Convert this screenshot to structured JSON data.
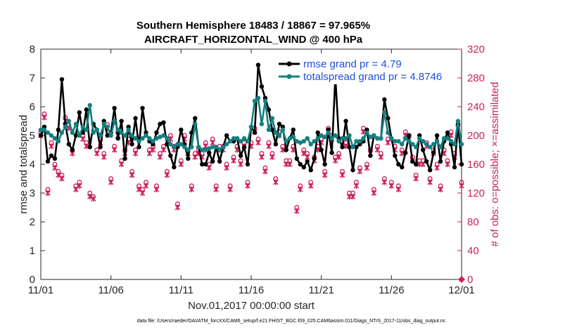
{
  "colors": {
    "rmse": "#000000",
    "spread": "#128080",
    "obs": "#cc1f5a",
    "legend_text": "#1f4fe0",
    "axis": "#262626"
  },
  "chart_data": {
    "type": "line",
    "title_line1": "Southern Hemisphere 18483 / 18867 = 97.965%",
    "title_line2": "AIRCRAFT_HORIZONTAL_WIND @ 400 hPa",
    "xlabel": "Nov.01,2017 00:00:00 start",
    "ylabel_left": "rmse and totalspread",
    "ylabel_right": "# of obs: o=possible; ×=assimilated",
    "footnote": "data file: /Users/raeder/DAI/ATM_forcXX/CAM6_setup/f.e21.FHIST_BGC.f09_025.CAM6assim.011/Diags_NTrS_2017-11/obs_diag_output.nc",
    "x_range_days": [
      0,
      30
    ],
    "ylim_left": [
      0,
      8
    ],
    "ylim_right": [
      0,
      320
    ],
    "x_ticks": [
      {
        "day": 0,
        "label": "11/01"
      },
      {
        "day": 5,
        "label": "11/06"
      },
      {
        "day": 10,
        "label": "11/11"
      },
      {
        "day": 15,
        "label": "11/16"
      },
      {
        "day": 20,
        "label": "11/21"
      },
      {
        "day": 25,
        "label": "11/26"
      },
      {
        "day": 30,
        "label": "12/01"
      }
    ],
    "y_ticks_left": [
      "0",
      "1",
      "2",
      "3",
      "4",
      "5",
      "6",
      "7",
      "8"
    ],
    "y_ticks_right": [
      "0",
      "40",
      "80",
      "120",
      "160",
      "200",
      "240",
      "280",
      "320"
    ],
    "legend": {
      "position": "top-right",
      "entries": [
        "rmse grand pr = 4.79",
        "totalspread grand pr = 4.8746"
      ]
    },
    "samples_per_day": 4,
    "series": [
      {
        "name": "rmse",
        "axis": "left",
        "values": [
          5.0,
          5.3,
          4.1,
          4.3,
          4.2,
          5.2,
          6.95,
          5.4,
          4.7,
          4.5,
          5.0,
          5.8,
          5.1,
          5.9,
          4.6,
          5.4,
          5.2,
          4.6,
          5.5,
          5.0,
          5.1,
          5.95,
          4.9,
          5.5,
          4.2,
          5.3,
          4.7,
          5.6,
          4.6,
          5.95,
          5.1,
          4.8,
          4.7,
          5.1,
          5.4,
          5.45,
          4.7,
          4.3,
          3.9,
          4.6,
          5.2,
          4.7,
          4.2,
          5.1,
          5.6,
          4.6,
          4.0,
          4.0,
          4.4,
          4.1,
          4.6,
          4.1,
          4.6,
          5.0,
          4.8,
          4.8,
          4.9,
          4.3,
          4.6,
          4.0,
          5.3,
          5.1,
          7.45,
          6.7,
          6.3,
          5.9,
          5.2,
          4.7,
          5.4,
          5.3,
          4.5,
          4.9,
          5.2,
          4.2,
          4.0,
          3.9,
          4.1,
          3.8,
          4.2,
          5.1,
          4.5,
          4.0,
          5.2,
          4.4,
          7.05,
          4.9,
          4.6,
          5.5,
          4.6,
          3.8,
          4.6,
          4.7,
          4.8,
          5.2,
          4.3,
          5.0,
          4.9,
          4.9,
          6.25,
          5.6,
          4.9,
          4.3,
          4.0,
          3.9,
          4.4,
          5.0,
          4.1,
          4.0,
          5.0,
          4.5,
          4.1,
          3.8,
          4.4,
          5.0,
          4.1,
          4.8,
          5.1,
          4.7,
          3.9,
          5.4,
          4.0
        ]
      },
      {
        "name": "totalspread",
        "axis": "left",
        "values": [
          5.2,
          5.2,
          5.1,
          5.0,
          4.9,
          4.8,
          5.1,
          5.3,
          5.5,
          5.1,
          5.4,
          5.0,
          5.3,
          5.2,
          6.05,
          5.1,
          5.2,
          5.0,
          5.4,
          5.3,
          5.0,
          5.5,
          5.2,
          5.1,
          5.0,
          5.2,
          5.0,
          4.9,
          4.8,
          4.9,
          5.0,
          4.9,
          4.8,
          4.9,
          4.95,
          5.0,
          4.9,
          4.7,
          4.6,
          4.7,
          4.7,
          4.6,
          4.5,
          4.6,
          5.4,
          4.6,
          4.5,
          4.5,
          4.55,
          4.6,
          4.6,
          4.5,
          4.6,
          4.7,
          4.8,
          4.9,
          4.9,
          4.8,
          4.9,
          4.8,
          5.3,
          6.2,
          6.3,
          5.4,
          6.2,
          5.2,
          5.6,
          5.1,
          5.0,
          5.2,
          4.8,
          4.9,
          4.95,
          4.8,
          4.75,
          4.8,
          4.9,
          4.7,
          4.8,
          4.9,
          5.0,
          4.95,
          5.1,
          4.9,
          5.0,
          4.8,
          4.9,
          4.9,
          5.0,
          4.6,
          4.8,
          4.8,
          4.9,
          5.1,
          4.95,
          5.0,
          4.9,
          4.9,
          5.8,
          5.1,
          4.9,
          4.8,
          4.8,
          4.7,
          4.9,
          4.8,
          4.7,
          4.6,
          4.9,
          4.8,
          4.7,
          4.6,
          4.7,
          4.8,
          4.6,
          4.9,
          4.9,
          4.8,
          4.7,
          5.5,
          4.7
        ]
      },
      {
        "name": "obs possible",
        "axis": "right",
        "values": [
          205,
          230,
          125,
          190,
          160,
          150,
          145,
          225,
          215,
          180,
          130,
          135,
          200,
          190,
          120,
          115,
          180,
          195,
          175,
          215,
          140,
          185,
          205,
          165,
          180,
          195,
          150,
          180,
          130,
          125,
          135,
          180,
          185,
          130,
          175,
          185,
          150,
          200,
          185,
          105,
          165,
          200,
          180,
          130,
          175,
          180,
          175,
          190,
          160,
          195,
          130,
          185,
          185,
          160,
          130,
          170,
          185,
          165,
          190,
          135,
          190,
          210,
          195,
          175,
          155,
          190,
          175,
          140,
          205,
          185,
          165,
          165,
          185,
          100,
          130,
          180,
          175,
          135,
          170,
          185,
          195,
          150,
          210,
          200,
          170,
          175,
          150,
          190,
          120,
          120,
          135,
          155,
          210,
          160,
          180,
          125,
          185,
          175,
          140,
          195,
          135,
          185,
          130,
          180,
          205,
          200,
          170,
          145,
          165,
          165,
          190,
          140,
          180,
          160,
          130,
          180,
          165,
          205,
          175,
          215,
          135
        ]
      },
      {
        "name": "obs assimilated",
        "axis": "right",
        "values": [
          200,
          225,
          120,
          185,
          155,
          145,
          140,
          220,
          210,
          175,
          125,
          130,
          195,
          185,
          115,
          112,
          175,
          190,
          170,
          210,
          135,
          180,
          200,
          160,
          175,
          190,
          145,
          175,
          125,
          120,
          130,
          175,
          180,
          125,
          170,
          180,
          145,
          195,
          180,
          100,
          160,
          195,
          175,
          125,
          170,
          175,
          170,
          185,
          155,
          190,
          125,
          180,
          180,
          155,
          125,
          165,
          180,
          160,
          185,
          130,
          185,
          205,
          190,
          170,
          150,
          185,
          170,
          135,
          200,
          180,
          160,
          160,
          180,
          95,
          125,
          175,
          170,
          130,
          165,
          180,
          190,
          145,
          205,
          195,
          165,
          170,
          145,
          185,
          115,
          115,
          130,
          150,
          205,
          155,
          175,
          120,
          180,
          170,
          135,
          190,
          130,
          180,
          125,
          175,
          200,
          195,
          165,
          140,
          160,
          160,
          185,
          135,
          175,
          155,
          125,
          175,
          160,
          200,
          170,
          210,
          130
        ]
      }
    ]
  }
}
